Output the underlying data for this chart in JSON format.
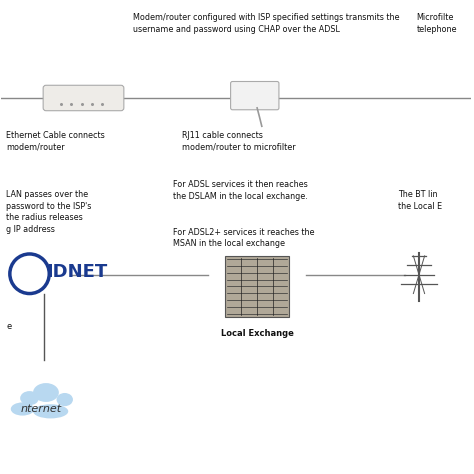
{
  "bg_color": "#ffffff",
  "top_text1": "Modem/router configured with ISP specified settings transmits the\nusername and password using CHAP over the ADSL",
  "top_text2": "Microfilte\ntelephone",
  "label_eth": "Ethernet Cable connects\nmodem/router",
  "label_rj11": "RJ11 cable connects\nmodem/router to microfilter",
  "label_adsl1": "For ADSL services it then reaches\nthe DSLAM in the local exchange.",
  "label_adsl2": "For ADSL2+ services it reaches the\nMSAN in the local exchange",
  "label_bt": "The BT lin\nthe Local E",
  "label_lan": "LAN passes over the\npassword to the ISP's\nthe radius releases\ng IP address",
  "label_local": "Local Exchange",
  "idnet_text": "IDNET",
  "internet_text": "nternet"
}
